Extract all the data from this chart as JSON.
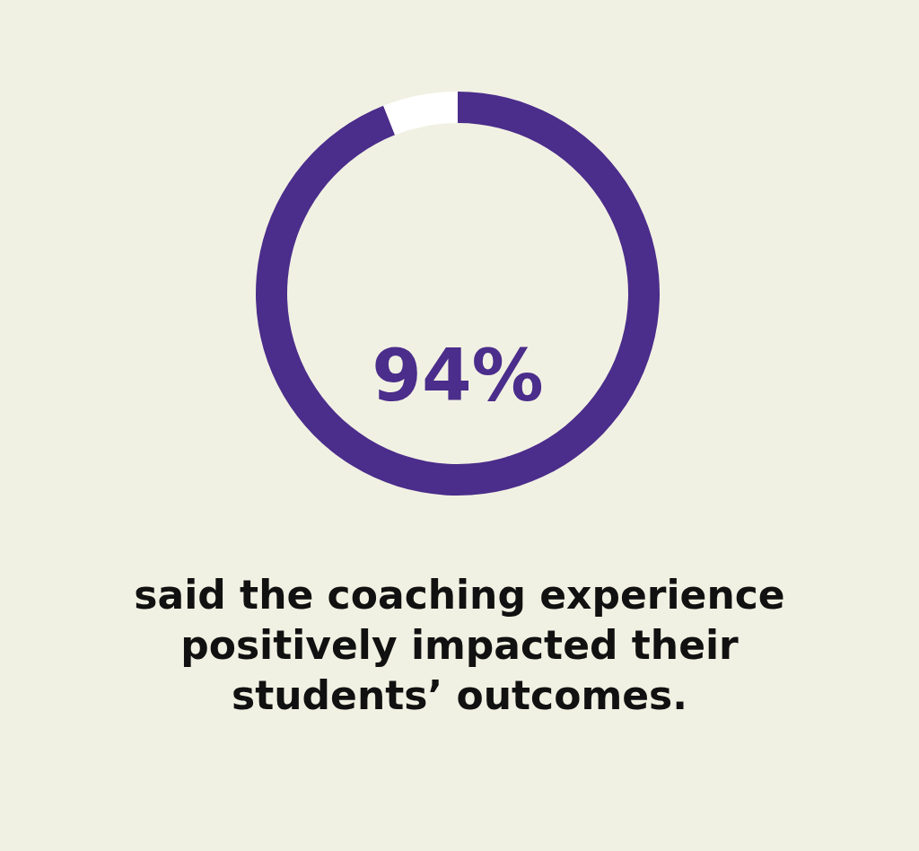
{
  "chart_data": {
    "type": "donut",
    "categories": [
      null,
      null
    ],
    "values": [
      94,
      6
    ],
    "colors": [
      "#4b2d8b",
      "#ffffff"
    ],
    "value_labels": [
      "94%",
      null
    ],
    "annotations": [
      "said the coaching experience positively impacted their students’ outcomes."
    ]
  }
}
